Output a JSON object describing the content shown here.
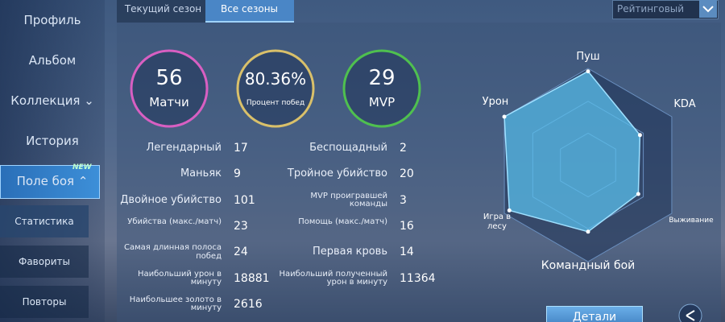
{
  "sidebar": {
    "items": [
      "Профиль",
      "Альбом",
      "Коллекция",
      "История",
      "Поле боя",
      "Статистика",
      "Фавориты",
      "Повторы"
    ],
    "badge": "NEW"
  },
  "tabs": [
    "Текущий сезон",
    "Все сезоны"
  ],
  "dropdown": "Рейтинговый",
  "summary": [
    {
      "value": "56",
      "label": "Матчи"
    },
    {
      "value": "80.36%",
      "label": "Процент побед"
    },
    {
      "value": "29",
      "label": "MVP"
    }
  ],
  "stats": {
    "left": [
      {
        "label": "Легендарный",
        "value": "17"
      },
      {
        "label": "Маньяк",
        "value": "9"
      },
      {
        "label": "Двойное убийство",
        "value": "101"
      },
      {
        "label": "Убийства (макс./матч)",
        "value": "23"
      },
      {
        "label": "Самая длинная полоса побед",
        "value": "24"
      },
      {
        "label": "Наибольший урон в минуту",
        "value": "18881"
      },
      {
        "label": "Наибольшее золото в минуту",
        "value": "2616"
      }
    ],
    "right": [
      {
        "label": "Беспощадный",
        "value": "2"
      },
      {
        "label": "Тройное убийство",
        "value": "20"
      },
      {
        "label": "MVP проигравшей команды",
        "value": "3"
      },
      {
        "label": "Помощь (макс./матч)",
        "value": "16"
      },
      {
        "label": "Первая кровь",
        "value": "14"
      },
      {
        "label": "Наибольший полученный урон в минуту",
        "value": "11364"
      }
    ]
  },
  "radar": {
    "axes": [
      "Пуш",
      "KDA",
      "Выживание",
      "Командный бой",
      "Игра в лесу",
      "Урон"
    ],
    "values": [
      0.97,
      0.62,
      0.6,
      0.69,
      0.94,
      1.0
    ]
  },
  "button": "Детали"
}
